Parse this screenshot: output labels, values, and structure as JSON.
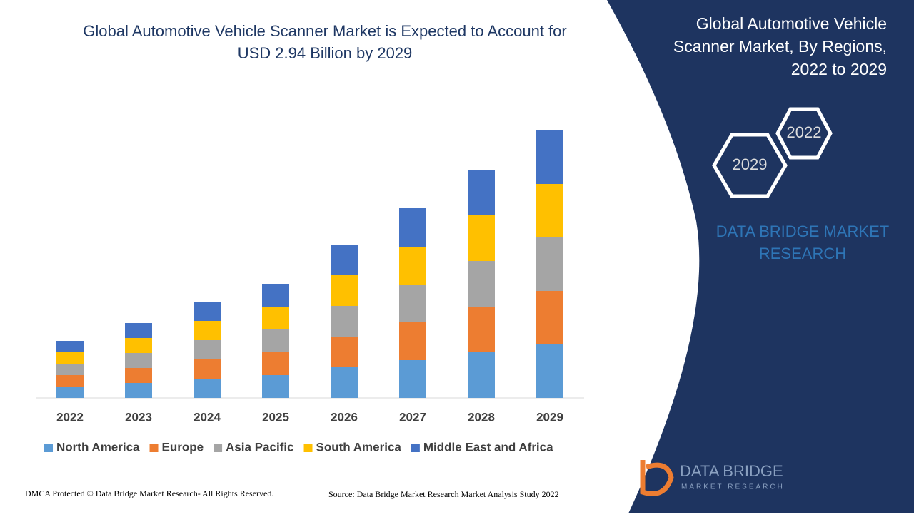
{
  "chart_data": {
    "type": "stacked-bar",
    "title": "Global Automotive Vehicle Scanner Market is Expected to Account for USD 2.94 Billion by 2029",
    "categories": [
      "2022",
      "2023",
      "2024",
      "2025",
      "2026",
      "2027",
      "2028",
      "2029"
    ],
    "series": [
      {
        "name": "North America",
        "color": "#5b9bd5",
        "values": [
          16,
          21,
          27,
          32,
          43,
          53,
          64,
          75
        ]
      },
      {
        "name": "Europe",
        "color": "#ed7d31",
        "values": [
          16,
          21,
          27,
          32,
          43,
          53,
          64,
          75
        ]
      },
      {
        "name": "Asia Pacific",
        "color": "#a5a5a5",
        "values": [
          16,
          21,
          27,
          32,
          43,
          53,
          64,
          75
        ]
      },
      {
        "name": "South America",
        "color": "#ffc000",
        "values": [
          16,
          21,
          27,
          32,
          43,
          53,
          64,
          75
        ]
      },
      {
        "name": "Middle East and Africa",
        "color": "#4472c4",
        "values": [
          16,
          21,
          26,
          32,
          42,
          54,
          64,
          75
        ]
      }
    ]
  },
  "panel": {
    "title_lines": [
      "Global Automotive Vehicle",
      "Scanner Market, By Regions,",
      "2022 to 2029"
    ],
    "hex_labels": [
      "2022",
      "2029"
    ],
    "brand_lines": [
      "DATA BRIDGE MARKET",
      "RESEARCH"
    ],
    "logo_lines": [
      "DATA BRIDGE",
      "MARKET RESEARCH"
    ]
  },
  "footer": {
    "copyright": "DMCA Protected © Data Bridge Market Research- All Rights Reserved.",
    "source": "Source: Data Bridge Market Research Market Analysis Study 2022"
  }
}
